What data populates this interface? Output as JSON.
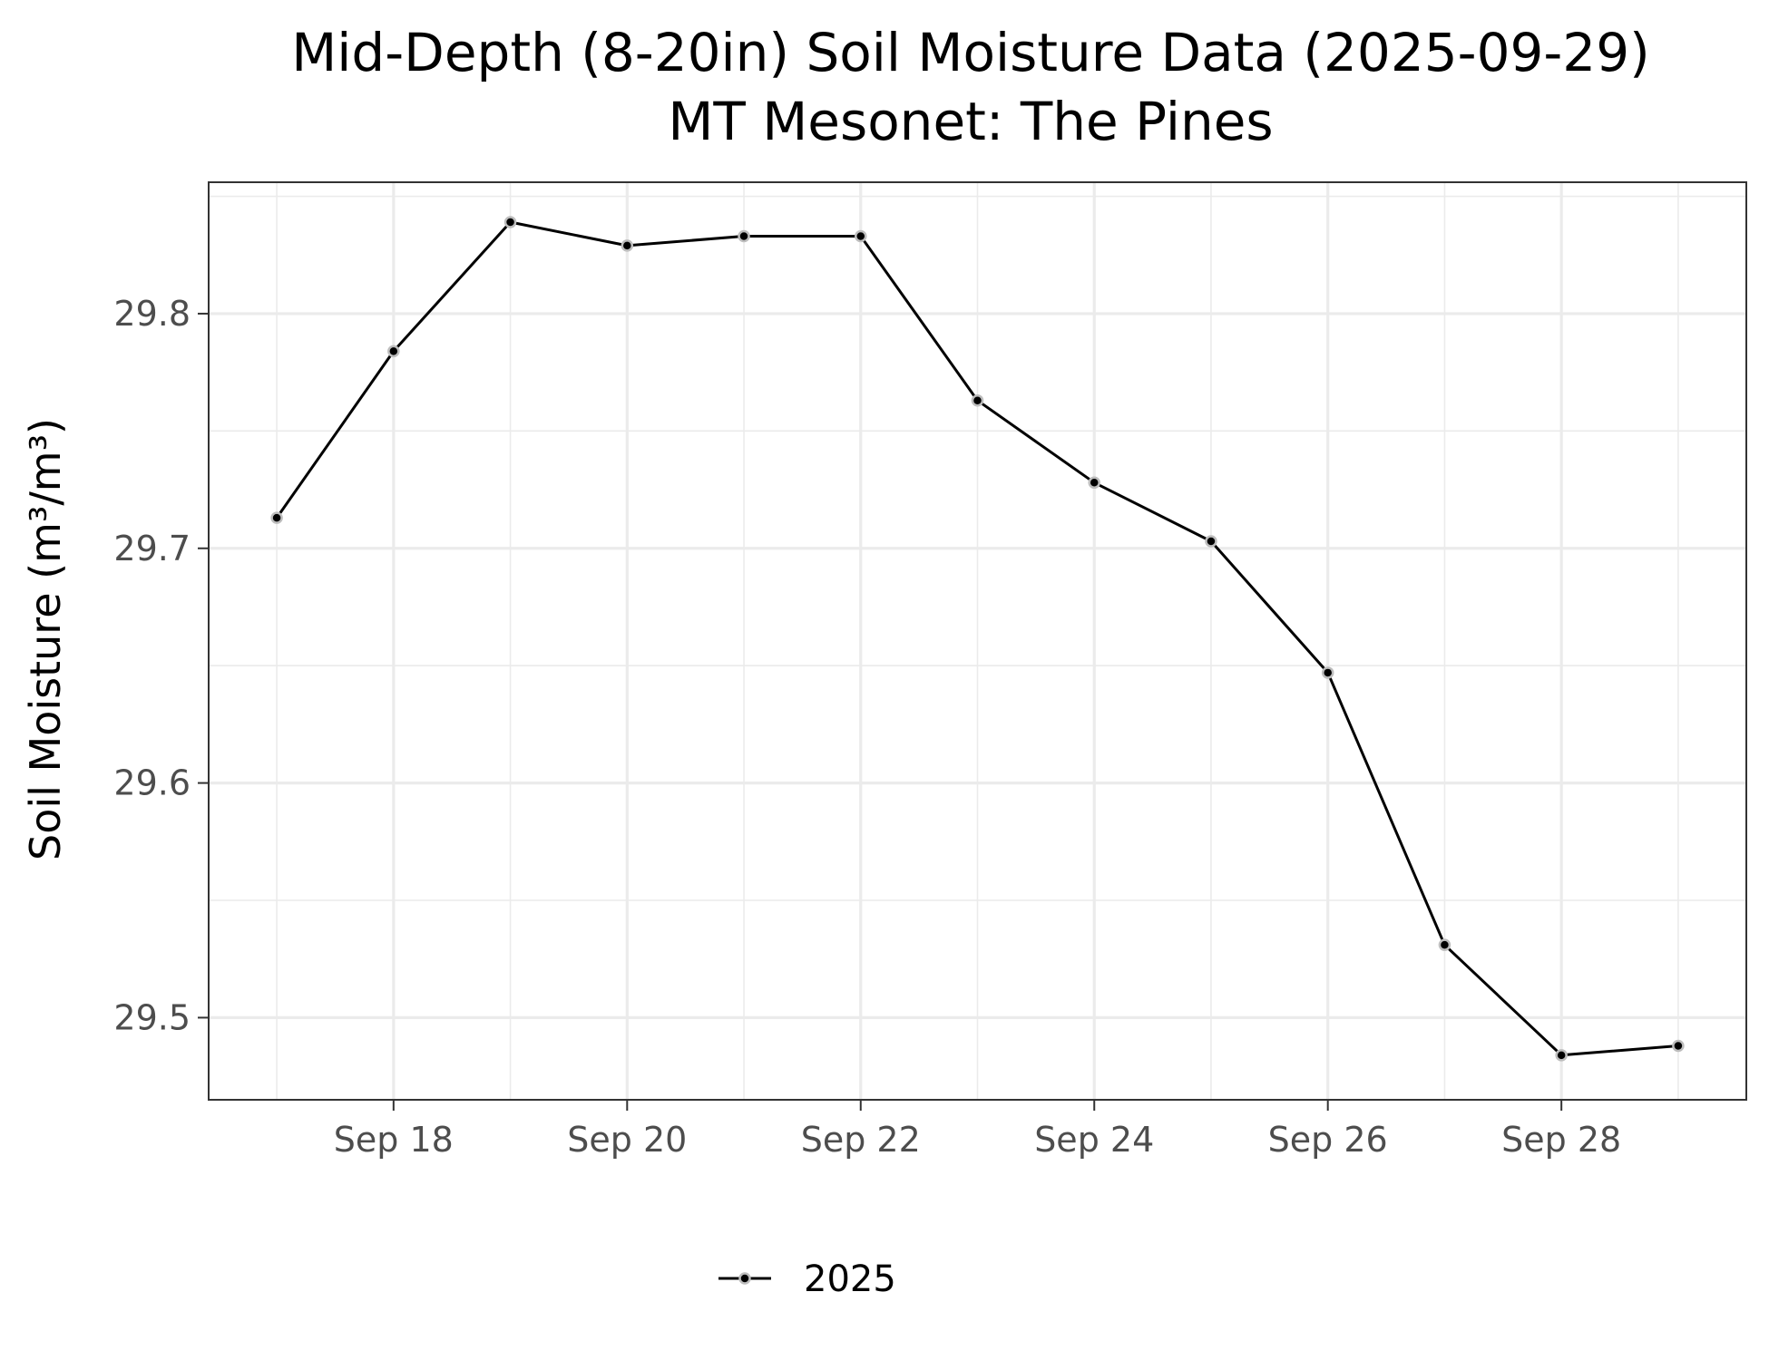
{
  "chart_data": {
    "type": "line",
    "title_lines": [
      "Mid-Depth (8-20in) Soil Moisture Data (2025-09-29)",
      "MT Mesonet: The Pines"
    ],
    "xlabel": "",
    "ylabel": "Soil Moisture (m³/m³)",
    "x_range": [
      "2025-09-16T10:00",
      "2025-09-29T14:00"
    ],
    "ylim": [
      29.465,
      29.856
    ],
    "x_ticks": [
      {
        "value": "2025-09-18",
        "label": "Sep 18"
      },
      {
        "value": "2025-09-20",
        "label": "Sep 20"
      },
      {
        "value": "2025-09-22",
        "label": "Sep 22"
      },
      {
        "value": "2025-09-24",
        "label": "Sep 24"
      },
      {
        "value": "2025-09-26",
        "label": "Sep 26"
      },
      {
        "value": "2025-09-28",
        "label": "Sep 28"
      }
    ],
    "x_minor_ticks": [
      "2025-09-17",
      "2025-09-19",
      "2025-09-21",
      "2025-09-23",
      "2025-09-25",
      "2025-09-27",
      "2025-09-29"
    ],
    "y_ticks": [
      {
        "value": 29.5,
        "label": "29.5"
      },
      {
        "value": 29.6,
        "label": "29.6"
      },
      {
        "value": 29.7,
        "label": "29.7"
      },
      {
        "value": 29.8,
        "label": "29.8"
      }
    ],
    "y_minor_ticks": [
      29.55,
      29.65,
      29.75,
      29.85
    ],
    "grid": true,
    "legend_position": "bottom",
    "series": [
      {
        "name": "2025",
        "color": "#000000",
        "points": [
          {
            "x": "2025-09-17",
            "y": 29.713
          },
          {
            "x": "2025-09-18",
            "y": 29.784
          },
          {
            "x": "2025-09-19",
            "y": 29.839
          },
          {
            "x": "2025-09-20",
            "y": 29.829
          },
          {
            "x": "2025-09-21",
            "y": 29.833
          },
          {
            "x": "2025-09-22",
            "y": 29.833
          },
          {
            "x": "2025-09-23",
            "y": 29.763
          },
          {
            "x": "2025-09-24",
            "y": 29.728
          },
          {
            "x": "2025-09-25",
            "y": 29.703
          },
          {
            "x": "2025-09-26",
            "y": 29.647
          },
          {
            "x": "2025-09-27",
            "y": 29.531
          },
          {
            "x": "2025-09-28",
            "y": 29.484
          },
          {
            "x": "2025-09-29",
            "y": 29.488
          }
        ]
      }
    ]
  }
}
